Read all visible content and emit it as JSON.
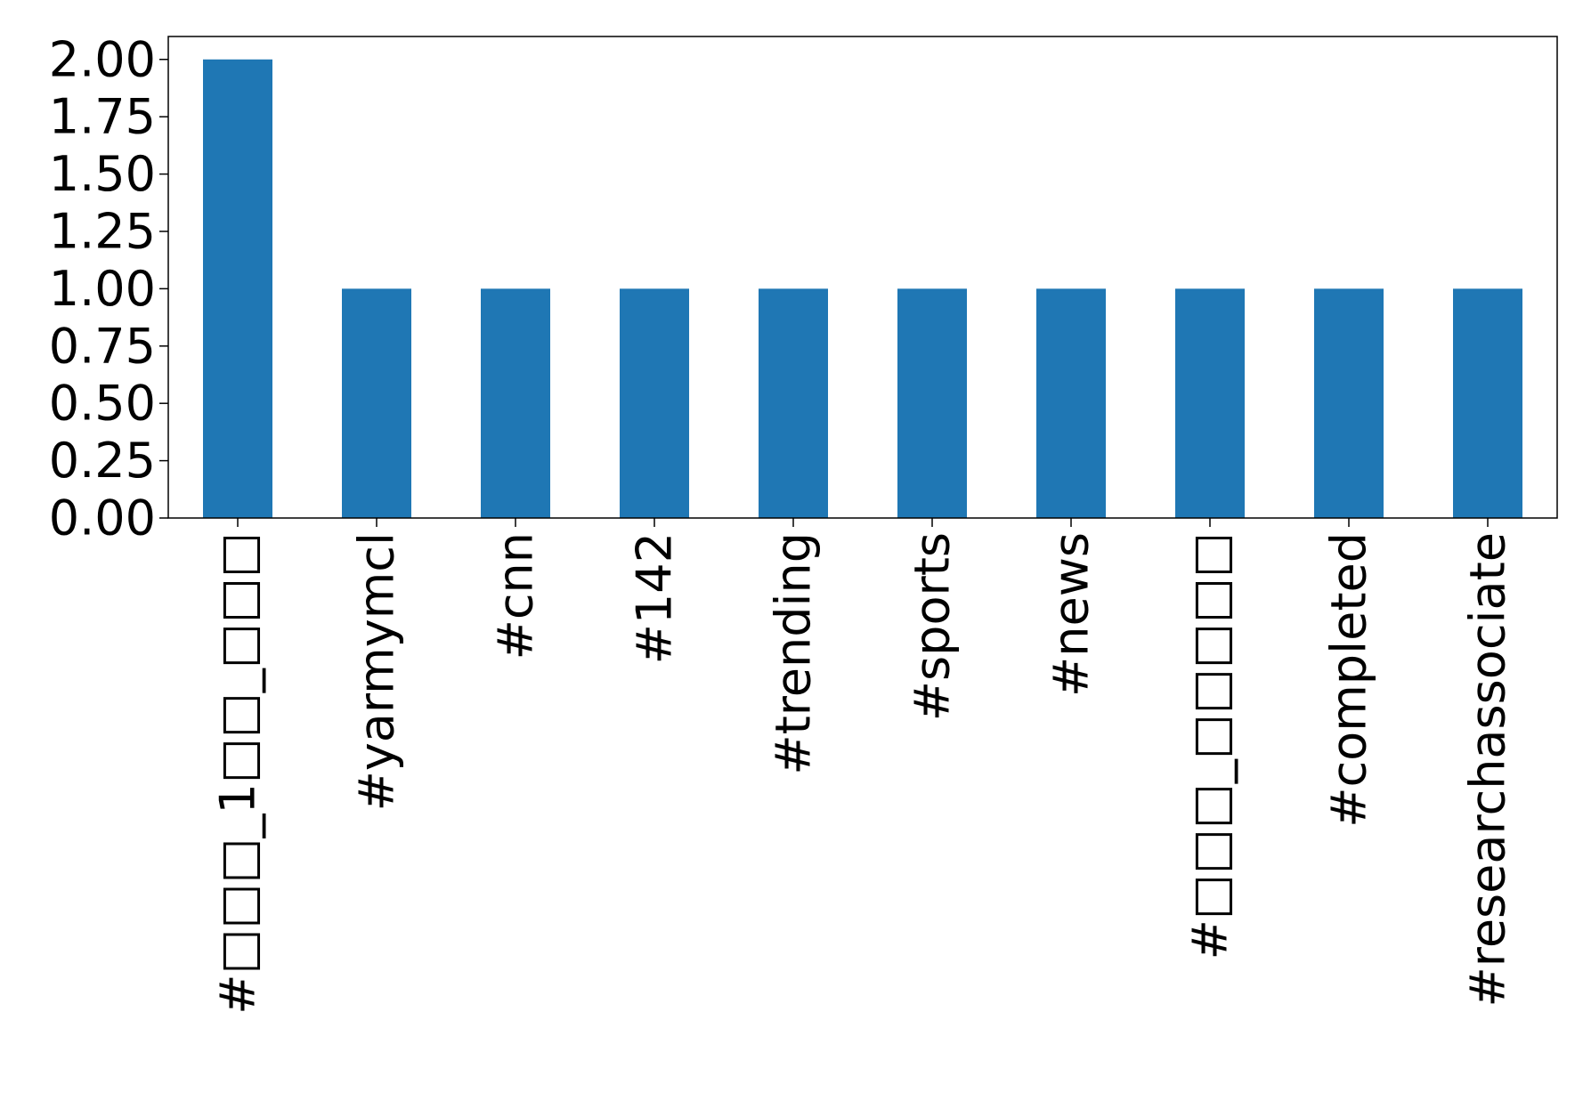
{
  "chart_data": {
    "type": "bar",
    "categories": [
      "#□□□_1□□_□□□",
      "#yarmymcl",
      "#cnn",
      "#142",
      "#trending",
      "#sports",
      "#news",
      "#□□□_□□□□□",
      "#completed",
      "#researchassociate"
    ],
    "values": [
      2,
      1,
      1,
      1,
      1,
      1,
      1,
      1,
      1,
      1
    ],
    "color": "#1f77b4",
    "ylim": [
      0,
      2.1
    ],
    "yticks": [
      {
        "value": 0,
        "label": "0.00"
      },
      {
        "value": 0.25,
        "label": "0.25"
      },
      {
        "value": 0.5,
        "label": "0.50"
      },
      {
        "value": 0.75,
        "label": "0.75"
      },
      {
        "value": 1,
        "label": "1.00"
      },
      {
        "value": 1.25,
        "label": "1.25"
      },
      {
        "value": 1.5,
        "label": "1.50"
      },
      {
        "value": 1.75,
        "label": "1.75"
      },
      {
        "value": 2,
        "label": "2.00"
      }
    ],
    "grid": false
  }
}
